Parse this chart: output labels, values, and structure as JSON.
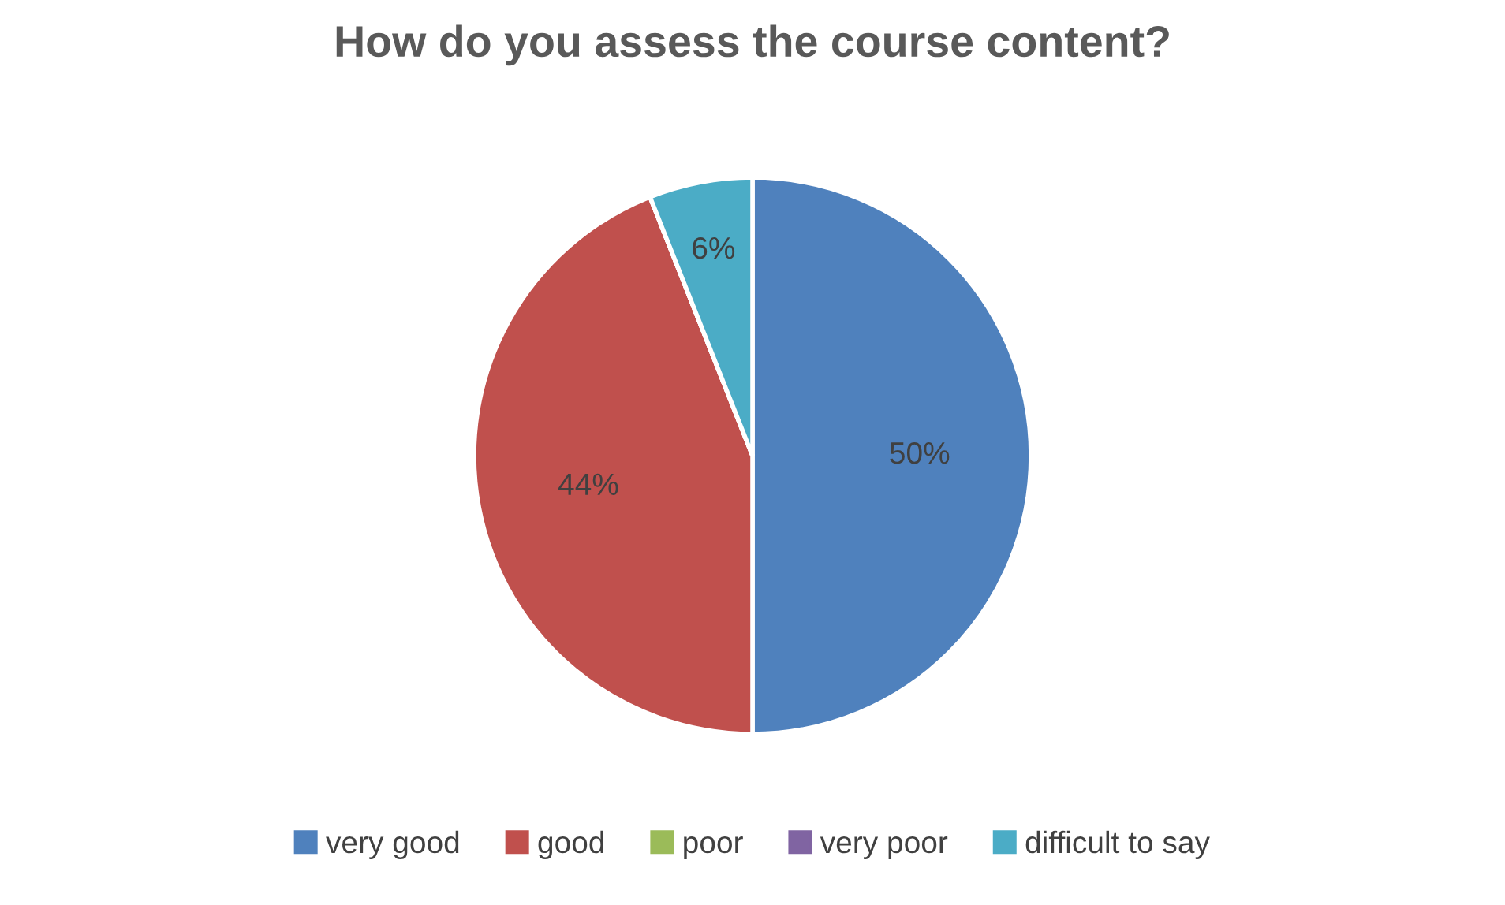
{
  "chart_data": {
    "type": "pie",
    "title": "How do you assess the course content?",
    "categories": [
      "very good",
      "good",
      "poor",
      "very poor",
      "difficult to say"
    ],
    "values": [
      50,
      44,
      0,
      0,
      6
    ],
    "colors": [
      "#4f81bd",
      "#c0504d",
      "#9bbb59",
      "#8064a2",
      "#4bacc6"
    ],
    "value_labels": [
      "50%",
      "44%",
      null,
      null,
      "6%"
    ],
    "legend": "bottom"
  }
}
